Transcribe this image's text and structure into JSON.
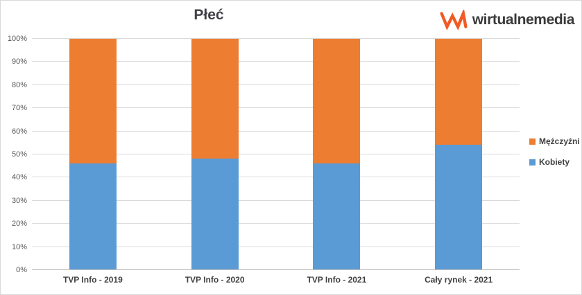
{
  "logo": {
    "brand": "wirtualnemedia",
    "mark_color": "#f15a24",
    "text_color": "#3a3a3a"
  },
  "chart_data": {
    "type": "bar",
    "stacked": true,
    "percent_stacked": true,
    "title": "Płeć",
    "categories": [
      "TVP Info - 2019",
      "TVP Info - 2020",
      "TVP Info - 2021",
      "Cały rynek - 2021"
    ],
    "series": [
      {
        "name": "Kobiety",
        "color": "#5b9bd5",
        "values": [
          46,
          48,
          46,
          54
        ]
      },
      {
        "name": "Mężczyźni",
        "color": "#ed7d31",
        "values": [
          54,
          52,
          54,
          46
        ]
      }
    ],
    "xlabel": "",
    "ylabel": "",
    "ylim": [
      0,
      100
    ],
    "ytick_step": 10,
    "ytick_labels": [
      "0%",
      "10%",
      "20%",
      "30%",
      "40%",
      "50%",
      "60%",
      "70%",
      "80%",
      "90%",
      "100%"
    ],
    "grid": true,
    "gridline_color": "#d9d9d9",
    "axis_line_color": "#bfbfbf",
    "legend": {
      "position": "right",
      "entries": [
        "Mężczyźni",
        "Kobiety"
      ]
    }
  }
}
